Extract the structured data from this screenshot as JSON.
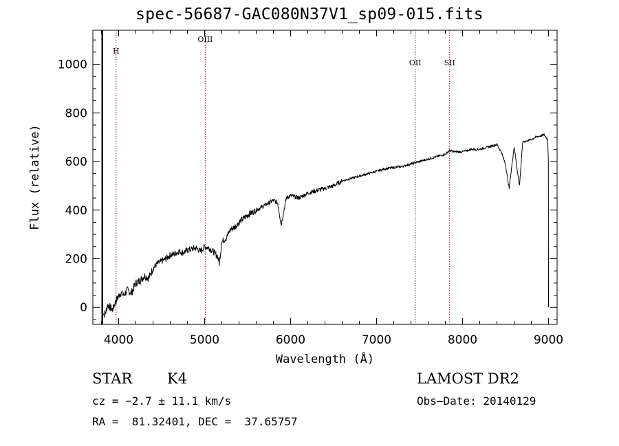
{
  "title": "spec-56687-GAC080N37V1_sp09-015.fits",
  "info": {
    "class": "STAR",
    "subclass": "K4",
    "survey": "LAMOST DR2",
    "cz": "cz = −2.7 ± 11.1 km/s",
    "obs_date": "Obs–Date: 20140129",
    "coords": "RA =  81.32401, DEC =  37.65757"
  },
  "chart_data": {
    "type": "line",
    "title": "spec-56687-GAC080N37V1_sp09-015.fits",
    "xlabel": "Wavelength (Å)",
    "ylabel": "Flux (relative)",
    "xlim": [
      3700,
      9100
    ],
    "ylim": [
      -70,
      1140
    ],
    "xticks": [
      4000,
      5000,
      6000,
      7000,
      8000,
      9000
    ],
    "yticks": [
      0,
      200,
      400,
      600,
      800,
      1000
    ],
    "emission_lines": [
      {
        "label": "H",
        "x": 3970
      },
      {
        "label": "OIII",
        "x": 5007
      },
      {
        "label": "OII",
        "x": 7450
      },
      {
        "label": "SII",
        "x": 7850
      }
    ],
    "series": [
      {
        "x": [
          3810,
          3830,
          3850,
          3870,
          3900,
          3930,
          3960,
          3990,
          4020,
          4060,
          4100,
          4150,
          4200,
          4250,
          4300,
          4350,
          4400,
          4450,
          4500,
          4550,
          4600,
          4650,
          4700,
          4750,
          4800,
          4850,
          4900,
          4950,
          5000,
          5050,
          5100,
          5150,
          5170,
          5200,
          5250,
          5300,
          5350,
          5400,
          5450,
          5500,
          5550,
          5600,
          5650,
          5700,
          5750,
          5800,
          5850,
          5890,
          5950,
          6000,
          6100,
          6200,
          6300,
          6400,
          6500,
          6600,
          6700,
          6800,
          6900,
          7000,
          7100,
          7200,
          7300,
          7400,
          7500,
          7600,
          7700,
          7800,
          7850,
          7900,
          8000,
          8100,
          8200,
          8300,
          8400,
          8450,
          8498,
          8542,
          8600,
          8662,
          8700,
          8800,
          8850,
          8900,
          8950,
          8990,
          8998,
          9000
        ],
        "y": [
          -10,
          -30,
          -20,
          10,
          0,
          -10,
          20,
          40,
          60,
          50,
          70,
          60,
          100,
          110,
          130,
          120,
          160,
          180,
          190,
          200,
          215,
          220,
          230,
          225,
          235,
          240,
          245,
          230,
          250,
          245,
          230,
          210,
          180,
          270,
          285,
          320,
          330,
          350,
          365,
          380,
          390,
          400,
          410,
          420,
          430,
          440,
          430,
          340,
          450,
          460,
          450,
          470,
          480,
          490,
          500,
          520,
          530,
          540,
          550,
          560,
          570,
          575,
          580,
          590,
          600,
          610,
          620,
          630,
          645,
          640,
          640,
          650,
          650,
          660,
          670,
          640,
          590,
          490,
          660,
          500,
          680,
          690,
          700,
          705,
          710,
          690,
          600,
          0
        ]
      }
    ]
  }
}
